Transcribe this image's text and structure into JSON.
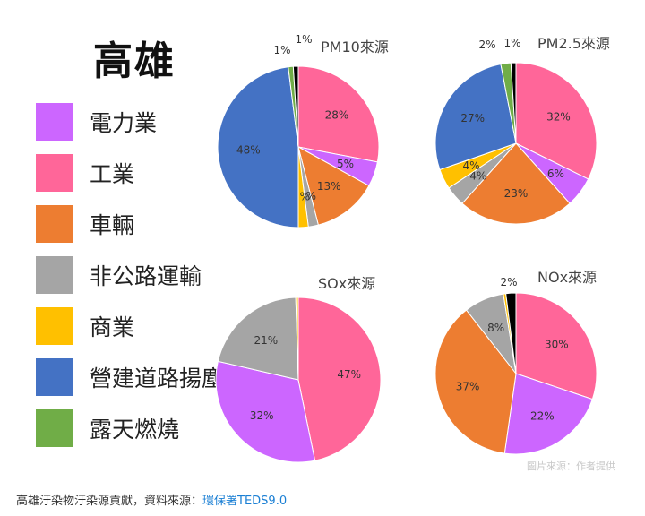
{
  "title": "高雄",
  "legend": [
    {
      "label": "電力業",
      "color": "#cc66ff"
    },
    {
      "label": "工業",
      "color": "#ff6699"
    },
    {
      "label": "車輛",
      "color": "#ed7d31"
    },
    {
      "label": "非公路運輸",
      "color": "#a5a5a5"
    },
    {
      "label": "商業",
      "color": "#ffc000"
    },
    {
      "label": "營建道路揚塵",
      "color": "#4472c4"
    },
    {
      "label": "露天燃燒",
      "color": "#70ad47"
    }
  ],
  "extra_colors": {
    "other": "#000000"
  },
  "chart_data": [
    {
      "type": "pie",
      "title": "PM10來源",
      "slices": [
        {
          "category": "工業",
          "value": 28,
          "label": "28%"
        },
        {
          "category": "電力業",
          "value": 5,
          "label": "5%"
        },
        {
          "category": "車輛",
          "value": 13,
          "label": "13%"
        },
        {
          "category": "非公路運輸",
          "value": 2,
          "label": "2%"
        },
        {
          "category": "商業",
          "value": 2,
          "label": "2%"
        },
        {
          "category": "營建道路揚塵",
          "value": 48,
          "label": "48%"
        },
        {
          "category": "露天燃燒",
          "value": 1,
          "label": "1%"
        },
        {
          "category": "other",
          "value": 1,
          "label": "1%"
        }
      ]
    },
    {
      "type": "pie",
      "title": "PM2.5來源",
      "slices": [
        {
          "category": "工業",
          "value": 32,
          "label": "32%"
        },
        {
          "category": "電力業",
          "value": 6,
          "label": "6%"
        },
        {
          "category": "車輛",
          "value": 23,
          "label": "23%"
        },
        {
          "category": "非公路運輸",
          "value": 4,
          "label": "4%"
        },
        {
          "category": "商業",
          "value": 4,
          "label": "4%"
        },
        {
          "category": "營建道路揚塵",
          "value": 27,
          "label": "27%"
        },
        {
          "category": "露天燃燒",
          "value": 2,
          "label": "2%"
        },
        {
          "category": "other",
          "value": 1,
          "label": "1%"
        }
      ]
    },
    {
      "type": "pie",
      "title": "SOx來源",
      "slices": [
        {
          "category": "工業",
          "value": 47,
          "label": "47%"
        },
        {
          "category": "電力業",
          "value": 32,
          "label": "32%"
        },
        {
          "category": "非公路運輸",
          "value": 21,
          "label": "21%"
        },
        {
          "category": "商業",
          "value": 0.5,
          "label": ""
        }
      ]
    },
    {
      "type": "pie",
      "title": "NOx來源",
      "slices": [
        {
          "category": "工業",
          "value": 30,
          "label": "30%"
        },
        {
          "category": "電力業",
          "value": 22,
          "label": "22%"
        },
        {
          "category": "車輛",
          "value": 37,
          "label": "37%"
        },
        {
          "category": "非公路運輸",
          "value": 8,
          "label": "8%"
        },
        {
          "category": "商業",
          "value": 0.5,
          "label": ""
        },
        {
          "category": "other",
          "value": 2,
          "label": "2%"
        }
      ]
    }
  ],
  "footer": {
    "caption": "高雄汙染物汙染源貢獻，資料來源：",
    "source": "環保署TEDS9.0"
  },
  "watermark": "圖片來源：作者提供"
}
